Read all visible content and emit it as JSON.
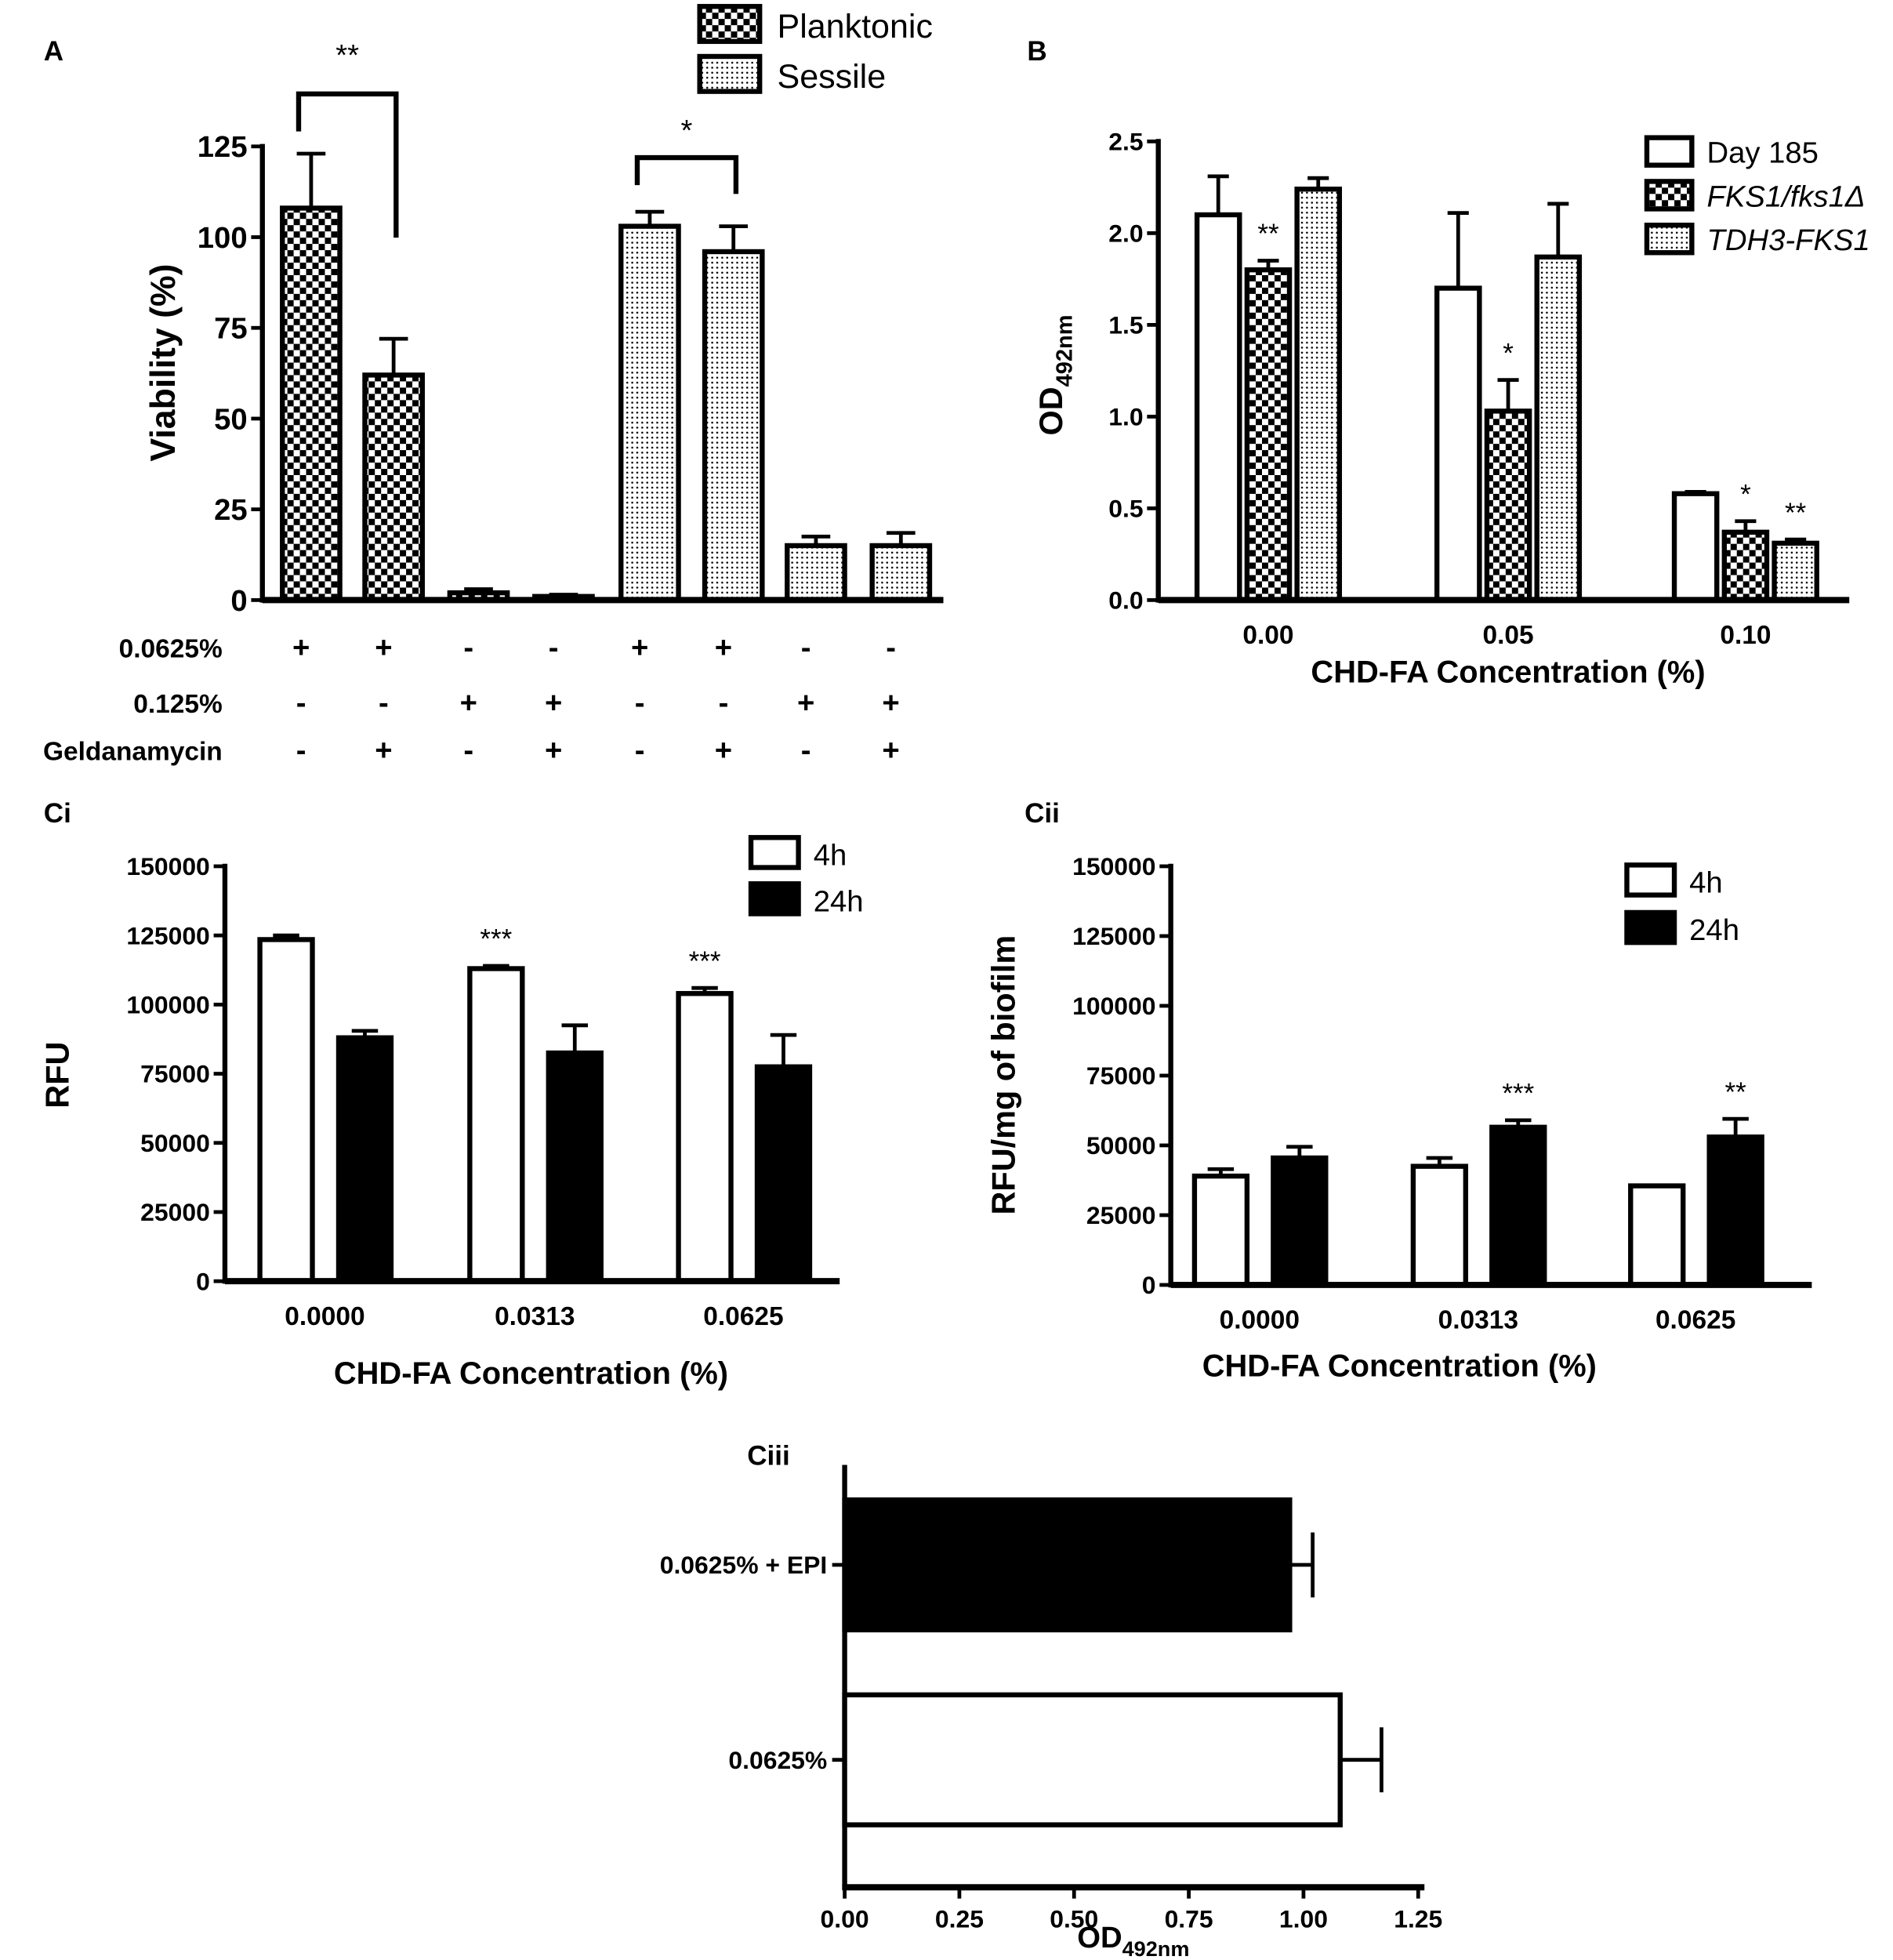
{
  "chart_data": [
    {
      "type": "bar",
      "panel_label": "A",
      "ylabel": "Viability (%)",
      "ylim": [
        0,
        125
      ],
      "ytick_labels": [
        "0",
        "25",
        "50",
        "75",
        "100",
        "125"
      ],
      "legend": [
        {
          "name": "Planktonic",
          "pattern": "checker"
        },
        {
          "name": "Sessile",
          "pattern": "dots"
        }
      ],
      "bars": [
        {
          "series": "Planktonic",
          "value": 108,
          "error": 15
        },
        {
          "series": "Planktonic",
          "value": 62,
          "error": 10
        },
        {
          "series": "Planktonic",
          "value": 2,
          "error": 1
        },
        {
          "series": "Planktonic",
          "value": 1,
          "error": 0.5
        },
        {
          "series": "Sessile",
          "value": 103,
          "error": 4
        },
        {
          "series": "Sessile",
          "value": 96,
          "error": 7
        },
        {
          "series": "Sessile",
          "value": 15,
          "error": 2.5
        },
        {
          "series": "Sessile",
          "value": 15,
          "error": 3.5
        }
      ],
      "condition_rows": [
        {
          "label": "0.0625%",
          "signs": [
            "+",
            "+",
            "-",
            "-",
            "+",
            "+",
            "-",
            "-"
          ]
        },
        {
          "label": "0.125%",
          "signs": [
            "-",
            "-",
            "+",
            "+",
            "-",
            "-",
            "+",
            "+"
          ]
        },
        {
          "label": "Geldanamycin",
          "signs": [
            "-",
            "+",
            "-",
            "+",
            "-",
            "+",
            "-",
            "+"
          ]
        }
      ],
      "significance": [
        {
          "from": 0,
          "to": 1,
          "label": "**"
        },
        {
          "from": 4,
          "to": 5,
          "label": "*"
        }
      ]
    },
    {
      "type": "bar",
      "panel_label": "B",
      "ylabel": "OD",
      "ylabel_sub": "492nm",
      "xlabel": "CHD-FA Concentration (%)",
      "ylim": [
        0,
        2.5
      ],
      "ytick_labels": [
        "0.0",
        "0.5",
        "1.0",
        "1.5",
        "2.0",
        "2.5"
      ],
      "categories": [
        "0.00",
        "0.05",
        "0.10"
      ],
      "legend_position": "top-right",
      "series": [
        {
          "name": "Day 185",
          "pattern": "open",
          "italic": false,
          "values": [
            2.1,
            1.7,
            0.58
          ],
          "errors": [
            0.21,
            0.41,
            0.01
          ],
          "sig": [
            "",
            "",
            ""
          ]
        },
        {
          "name": "FKS1/fks1Δ",
          "pattern": "checker",
          "italic": true,
          "values": [
            1.8,
            1.03,
            0.37
          ],
          "errors": [
            0.05,
            0.17,
            0.06
          ],
          "sig": [
            "**",
            "*",
            "*"
          ]
        },
        {
          "name": "TDH3-FKS1",
          "pattern": "dots",
          "italic": true,
          "values": [
            2.24,
            1.87,
            0.31
          ],
          "errors": [
            0.06,
            0.29,
            0.02
          ],
          "sig": [
            "",
            "",
            "**"
          ]
        }
      ]
    },
    {
      "type": "bar",
      "panel_label": "Ci",
      "ylabel": "RFU",
      "xlabel": "CHD-FA Concentration (%)",
      "ylim": [
        0,
        150000
      ],
      "ytick_labels": [
        "0",
        "25000",
        "50000",
        "75000",
        "100000",
        "125000",
        "150000"
      ],
      "categories": [
        "0.0000",
        "0.0313",
        "0.0625"
      ],
      "legend_position": "top-right",
      "series": [
        {
          "name": "4h",
          "pattern": "open",
          "values": [
            123500,
            113000,
            104000
          ],
          "errors": [
            1500,
            1000,
            2000
          ],
          "sig": [
            "",
            "***",
            "***"
          ]
        },
        {
          "name": "24h",
          "pattern": "solid",
          "values": [
            88000,
            82500,
            77500
          ],
          "errors": [
            2500,
            10000,
            11500
          ],
          "sig": [
            "",
            "",
            ""
          ]
        }
      ]
    },
    {
      "type": "bar",
      "panel_label": "Cii",
      "ylabel": "RFU/mg of biofilm",
      "xlabel": "CHD-FA Concentration (%)",
      "ylim": [
        0,
        150000
      ],
      "ytick_labels": [
        "0",
        "25000",
        "50000",
        "75000",
        "100000",
        "125000",
        "150000"
      ],
      "categories": [
        "0.0000",
        "0.0313",
        "0.0625"
      ],
      "legend_position": "top-right",
      "series": [
        {
          "name": "4h",
          "pattern": "open",
          "values": [
            39000,
            42500,
            35500
          ],
          "errors": [
            2500,
            3000,
            0
          ],
          "sig": [
            "",
            "",
            ""
          ]
        },
        {
          "name": "24h",
          "pattern": "solid",
          "values": [
            45500,
            56500,
            53000
          ],
          "errors": [
            4000,
            2500,
            6500
          ],
          "sig": [
            "",
            "***",
            "**"
          ]
        }
      ]
    },
    {
      "type": "bar",
      "orientation": "horizontal",
      "panel_label": "Ciii",
      "xlabel": "OD",
      "xlabel_sub": "492nm",
      "xlim": [
        0,
        1.25
      ],
      "xtick_labels": [
        "0.00",
        "0.25",
        "0.50",
        "0.75",
        "1.00",
        "1.25"
      ],
      "categories": [
        "0.0625% + EPI",
        "0.0625%"
      ],
      "bars": [
        {
          "value": 0.97,
          "error": 0.05,
          "pattern": "solid"
        },
        {
          "value": 1.08,
          "error": 0.09,
          "pattern": "open"
        }
      ]
    }
  ]
}
